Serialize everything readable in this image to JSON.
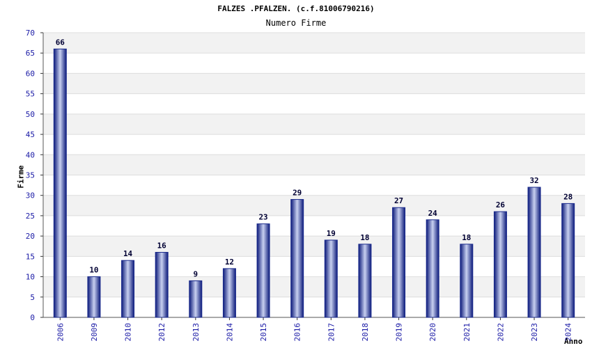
{
  "chart_data": {
    "type": "bar",
    "title": "FALZES .PFALZEN. (c.f.81006790216)",
    "subtitle": "Numero Firme",
    "xlabel": "Anno",
    "ylabel": "Firme",
    "categories": [
      "2006",
      "2009",
      "2010",
      "2012",
      "2013",
      "2014",
      "2015",
      "2016",
      "2017",
      "2018",
      "2019",
      "2020",
      "2021",
      "2022",
      "2023",
      "2024"
    ],
    "values": [
      66,
      10,
      14,
      16,
      9,
      12,
      23,
      29,
      19,
      18,
      27,
      24,
      18,
      26,
      32,
      28
    ],
    "ylim": [
      0,
      70
    ],
    "yticks": [
      0,
      5,
      10,
      15,
      20,
      25,
      30,
      35,
      40,
      45,
      50,
      55,
      60,
      65,
      70
    ],
    "grid": true,
    "colors": {
      "bar": "#1a2a8c",
      "tick": "#1a1aa6",
      "band": "#f2f2f2"
    }
  }
}
